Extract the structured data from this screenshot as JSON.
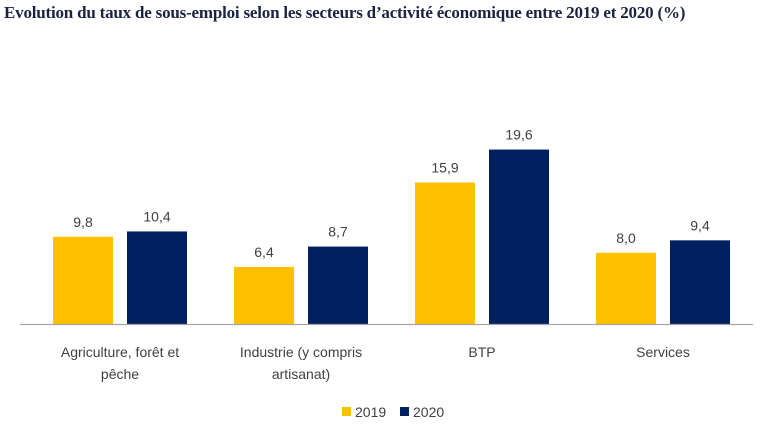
{
  "chart_data": {
    "type": "bar",
    "title": "Evolution du taux de sous-emploi selon les secteurs d’activité économique entre 2019 et 2020 (%)",
    "xlabel": "",
    "ylabel": "",
    "ylim": [
      0,
      20
    ],
    "grid": false,
    "legend_position": "bottom",
    "categories": [
      [
        "Agriculture, forêt et",
        "pêche"
      ],
      [
        "Industrie (y compris",
        "artisanat)"
      ],
      [
        "BTP"
      ],
      [
        "Services"
      ]
    ],
    "series": [
      {
        "name": "2019",
        "color": "#FFC000",
        "values": [
          9.8,
          6.4,
          15.9,
          8.0
        ],
        "labels": [
          "9,8",
          "6,4",
          "15,9",
          "8,0"
        ]
      },
      {
        "name": "2020",
        "color": "#002060",
        "values": [
          10.4,
          8.7,
          19.6,
          9.4
        ],
        "labels": [
          "10,4",
          "8,7",
          "19,6",
          "9,4"
        ]
      }
    ],
    "axis_color": "#A6A6A6"
  }
}
